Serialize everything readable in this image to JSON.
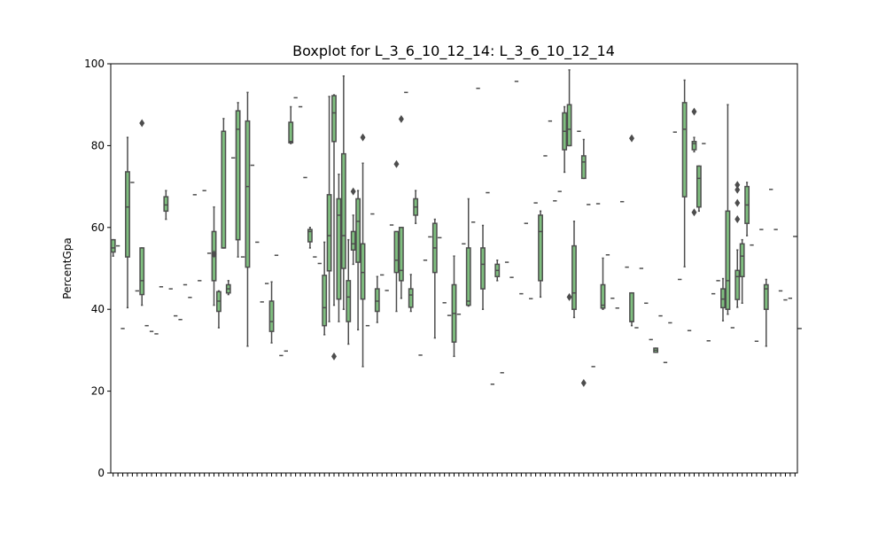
{
  "chart_data": {
    "type": "box",
    "title": "Boxplot for L_3_6_10_12_14: L_3_6_10_12_14",
    "ylabel": "PercentGpa",
    "ylim": [
      0,
      100
    ],
    "yticks": [
      0,
      20,
      40,
      60,
      80,
      100
    ],
    "color": "#7fbf7f",
    "edge_color": "#4d4d4d",
    "categories": [
      null,
      null,
      null,
      null,
      null,
      null,
      null,
      null,
      null,
      null,
      null,
      null,
      null,
      null,
      null,
      null,
      null,
      null,
      null,
      null,
      null,
      null,
      null,
      null,
      null,
      null,
      null,
      null,
      null,
      null,
      null,
      null,
      null,
      null,
      null,
      null,
      null,
      null,
      null,
      null,
      null,
      null,
      null,
      null,
      null,
      null,
      null,
      null,
      null,
      null,
      null,
      null,
      null,
      null,
      null,
      null,
      null,
      null,
      null,
      null,
      null,
      null,
      null,
      null,
      null,
      null,
      null,
      null,
      null,
      null,
      null,
      null,
      null,
      null,
      null,
      null,
      null,
      null,
      null,
      null,
      null,
      null,
      null,
      null,
      null,
      null,
      null,
      null,
      null,
      null,
      null,
      null,
      null,
      null,
      null,
      null,
      null,
      null,
      null,
      null,
      null,
      null,
      null,
      null,
      null,
      null,
      null,
      null,
      null,
      null,
      null,
      null,
      null,
      null,
      null,
      null,
      null,
      null,
      null,
      null,
      null,
      null,
      null,
      null,
      null,
      null,
      null,
      null,
      null,
      null,
      null,
      null,
      null,
      null,
      null,
      null,
      null,
      null,
      null,
      null,
      null,
      null,
      null
    ],
    "boxes": [
      [
        53,
        54,
        55,
        57,
        57
      ],
      [
        55.5
      ],
      [
        35.3
      ],
      [
        40.4,
        52.8,
        65,
        73.6,
        82
      ],
      [
        71
      ],
      [
        44.5
      ],
      [
        41,
        43.6,
        47,
        55,
        55,
        [
          85.5
        ]
      ],
      [
        36
      ],
      [
        34.6
      ],
      [
        34
      ],
      [
        45.5
      ],
      [
        62,
        64,
        65.5,
        67.5,
        69
      ],
      [
        45
      ],
      [
        38.4
      ],
      [
        37.5
      ],
      [
        46
      ],
      [
        42.9
      ],
      [
        68
      ],
      [
        47
      ],
      [
        69
      ],
      [
        53.7
      ],
      [
        41,
        47,
        53,
        59,
        65,
        [
          53.5
        ]
      ],
      [
        35.5,
        39.5,
        42,
        44.3,
        44.5
      ],
      [
        55,
        55,
        55,
        83.5,
        86.6
      ],
      [
        43.6,
        44,
        45,
        46,
        47
      ],
      [
        77
      ],
      [
        52.8,
        57,
        84,
        88.5,
        90.5
      ],
      [
        52.8
      ],
      [
        31,
        50.3,
        70,
        86,
        93
      ],
      [
        75.2
      ],
      [
        56.4
      ],
      [
        41.8
      ],
      [
        46.3
      ],
      [
        31.8,
        34.6,
        37,
        42,
        46.7
      ],
      [
        53.2
      ],
      [
        28.7
      ],
      [
        29.8
      ],
      [
        80.5,
        80.7,
        81,
        85.7,
        89.5
      ],
      [
        91.7
      ],
      [
        89.5
      ],
      [
        72.2
      ],
      [
        55,
        56.5,
        59,
        59.5,
        60
      ],
      [
        52.8
      ],
      [
        51.2
      ],
      [
        33.8,
        36,
        40.4,
        48.3,
        56.4
      ],
      [
        37,
        49.4,
        58,
        68,
        92
      ],
      [
        41,
        81,
        88,
        92.2,
        92.4,
        [
          28.5
        ]
      ],
      [
        37,
        42.5,
        63,
        67,
        73
      ],
      [
        40,
        50,
        58,
        78,
        97
      ],
      [
        31.5,
        37,
        43,
        47,
        57
      ],
      [
        51,
        54.5,
        56,
        59,
        63,
        [
          68.8
        ]
      ],
      [
        35,
        51.5,
        61.5,
        67,
        69
      ],
      [
        26,
        42.5,
        49,
        56,
        75.7,
        [
          82
        ]
      ],
      [
        36
      ],
      [
        63.3
      ],
      [
        36.8,
        39.5,
        42,
        45,
        48
      ],
      [
        48.4
      ],
      [
        44.6
      ],
      [
        60.6
      ],
      [
        39.5,
        49,
        52,
        59,
        57,
        [
          75.5
        ]
      ],
      [
        42.7,
        47,
        49.5,
        60,
        60,
        [
          86.5
        ]
      ],
      [
        93
      ],
      [
        39.5,
        40.5,
        43.5,
        45,
        48.5
      ],
      [
        61,
        63,
        65,
        67,
        69
      ],
      [
        28.8
      ],
      [
        52
      ],
      [
        57.7
      ],
      [
        33,
        49,
        55,
        61,
        62
      ],
      [
        57.5
      ],
      [
        41.6
      ],
      [
        38.5
      ],
      [
        28.5,
        32,
        39,
        46,
        53
      ],
      [
        38.8
      ],
      [
        56
      ],
      [
        40.8,
        41,
        42,
        55,
        67
      ],
      [
        61.3
      ],
      [
        94
      ],
      [
        40,
        45,
        51,
        55,
        60.5
      ],
      [
        68.5
      ],
      [
        21.7
      ],
      [
        47,
        48,
        49.5,
        51,
        52
      ],
      [
        24.5
      ],
      [
        51.5
      ],
      [
        47.8
      ],
      [
        95.7
      ],
      [
        43.8
      ],
      [
        61
      ],
      [
        42.6
      ],
      [
        66
      ],
      [
        43,
        47,
        59,
        63,
        64
      ],
      [
        77.5
      ],
      [
        86
      ],
      [
        66.5
      ],
      [
        68.8
      ],
      [
        73.5,
        79,
        83.5,
        88,
        89.5
      ],
      [
        80,
        80,
        84,
        90,
        98.5,
        [
          43
        ]
      ],
      [
        38,
        40,
        44,
        55.5,
        61.5
      ],
      [
        83.5
      ],
      [
        72,
        72,
        76,
        77.5,
        81.5,
        [
          22
        ]
      ],
      [
        65.6
      ],
      [
        26
      ],
      [
        65.8
      ],
      [
        40,
        40.3,
        41,
        46,
        52.5
      ],
      [
        53.3
      ],
      [
        42.7
      ],
      [
        40.3
      ],
      [
        66.3
      ],
      [
        50.3
      ],
      [
        36,
        37,
        37,
        44,
        44,
        [
          81.8
        ]
      ],
      [
        35.5
      ],
      [
        50
      ],
      [
        41.5
      ],
      [
        32.6
      ],
      [
        29.5,
        29.5,
        30,
        30.5,
        30.5
      ],
      [
        38.4
      ],
      [
        27
      ],
      [
        36.7
      ],
      [
        83.3
      ],
      [
        47.3
      ],
      [
        50.4,
        67.5,
        84,
        90.5,
        96
      ],
      [
        34.8
      ],
      [
        78.5,
        79,
        80.5,
        81,
        82,
        [
          88.3,
          63.7
        ]
      ],
      [
        64,
        65,
        72,
        75,
        75
      ],
      [
        80.5
      ],
      [
        32.3
      ],
      [
        43.8
      ],
      [
        47
      ],
      [
        37.2,
        40.4,
        42.5,
        45,
        47.5
      ],
      [
        38.8,
        40,
        47,
        64,
        90
      ],
      [
        35.5
      ],
      [
        40.5,
        42.4,
        48,
        49.5,
        54.5,
        [
          70.4,
          69.2,
          66,
          62
        ]
      ],
      [
        41.5,
        48,
        53,
        56,
        57
      ],
      [
        58,
        61,
        65.5,
        70,
        71
      ],
      [
        55.7
      ],
      [
        32.2
      ],
      [
        59.5
      ],
      [
        31,
        40,
        45,
        46,
        47.3
      ],
      [
        69.3
      ],
      [
        59.5
      ],
      [
        44.5
      ],
      [
        42.3
      ],
      [
        42.7
      ],
      [
        57.8
      ],
      [
        35.3
      ]
    ]
  }
}
